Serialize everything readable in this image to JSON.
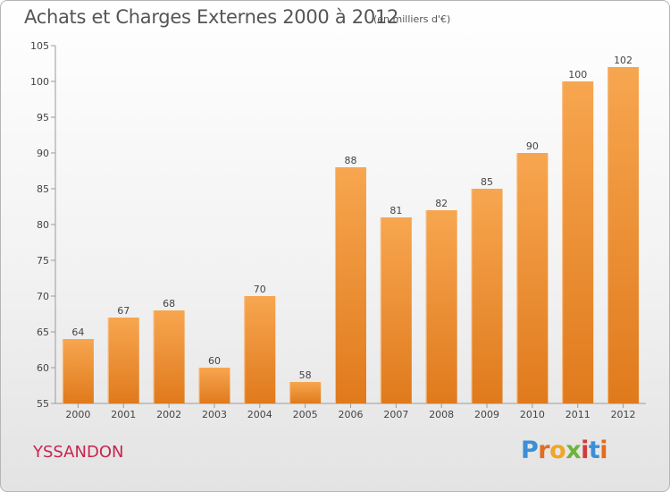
{
  "chart_data": {
    "type": "bar",
    "title": "Achats et Charges Externes 2000 à 2012",
    "subtitle": "(en milliers d'€)",
    "categories": [
      "2000",
      "2001",
      "2002",
      "2003",
      "2004",
      "2005",
      "2006",
      "2007",
      "2008",
      "2009",
      "2010",
      "2011",
      "2012"
    ],
    "values": [
      64,
      67,
      68,
      60,
      70,
      58,
      88,
      81,
      82,
      85,
      90,
      100,
      102
    ],
    "ylim": [
      55,
      105
    ],
    "yticks": [
      55,
      60,
      65,
      70,
      75,
      80,
      85,
      90,
      95,
      100,
      105
    ],
    "grid": false,
    "bar_color_top": "#f7a650",
    "bar_color_bottom": "#e07a1c"
  },
  "footer": {
    "commune": "YSSANDON",
    "logo": {
      "text": "Proxiti",
      "colors": [
        "#3b8fd6",
        "#e36c1e",
        "#f0a626",
        "#6fb33c",
        "#d23a3a",
        "#3b8fd6",
        "#e36c1e"
      ]
    }
  }
}
